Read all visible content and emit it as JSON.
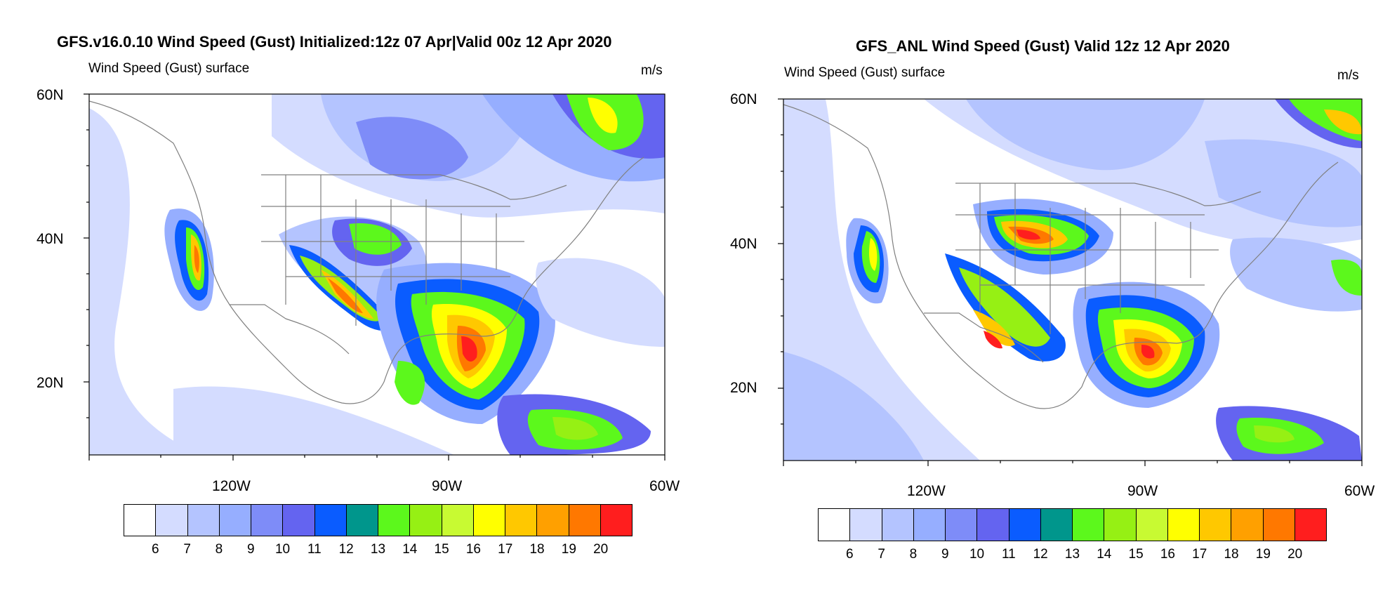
{
  "colorbar": {
    "colors": [
      "#ffffff",
      "#d4dcff",
      "#b4c4ff",
      "#96aeff",
      "#7e8cf8",
      "#6464f0",
      "#0a5cff",
      "#00968c",
      "#5cf81c",
      "#96f014",
      "#c8fa32",
      "#ffff00",
      "#ffc800",
      "#ffa000",
      "#ff7800",
      "#ff1e1e"
    ],
    "labels": [
      "6",
      "7",
      "8",
      "9",
      "10",
      "11",
      "12",
      "13",
      "14",
      "15",
      "16",
      "17",
      "18",
      "19",
      "20"
    ]
  },
  "panels": [
    {
      "title": "GFS.v16.0.10 Wind Speed (Gust) Initialized:12z 07 Apr|Valid 00z 12 Apr 2020",
      "subtitle": "Wind Speed (Gust) surface",
      "units": "m/s",
      "lat_labels": [
        "60N",
        "40N",
        "20N"
      ],
      "lon_labels": [
        "120W",
        "90W",
        "60W"
      ]
    },
    {
      "title": "GFS_ANL Wind Speed (Gust) Valid 12z 12 Apr 2020",
      "subtitle": "Wind Speed (Gust) surface",
      "units": "m/s",
      "lat_labels": [
        "60N",
        "40N",
        "20N"
      ],
      "lon_labels": [
        "120W",
        "90W",
        "60W"
      ]
    }
  ]
}
